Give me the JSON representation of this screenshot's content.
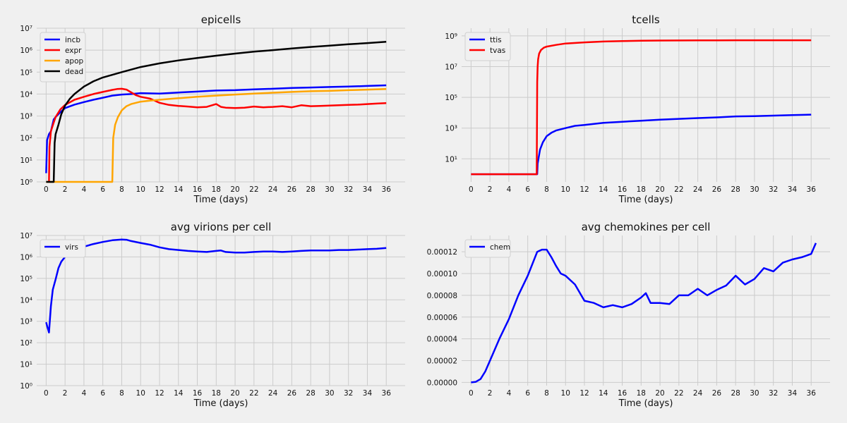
{
  "chart_data": [
    {
      "type": "line",
      "title": "epicells",
      "xlabel": "Time (days)",
      "ylabel": "",
      "yscale": "log",
      "ylim_log10": [
        0,
        7
      ],
      "ytick_labels": [
        "10⁰",
        "10¹",
        "10²",
        "10³",
        "10⁴",
        "10⁵",
        "10⁶",
        "10⁷"
      ],
      "xlim": [
        -1,
        38
      ],
      "xticks": [
        0,
        2,
        4,
        6,
        8,
        10,
        12,
        14,
        16,
        18,
        20,
        22,
        24,
        26,
        28,
        30,
        32,
        34,
        36
      ],
      "grid": true,
      "legend": "top-left",
      "series": [
        {
          "name": "incb",
          "color": "#0000ff",
          "x": [
            0,
            0.1,
            0.3,
            0.5,
            0.8,
            1,
            1.5,
            2,
            3,
            4,
            5,
            6,
            7,
            8,
            9,
            10,
            12,
            14,
            16,
            18,
            20,
            22,
            24,
            26,
            28,
            30,
            32,
            34,
            36
          ],
          "values": [
            2.5,
            80,
            150,
            200,
            700,
            900,
            1500,
            2300,
            3300,
            4300,
            5500,
            6800,
            8500,
            9500,
            10000,
            11000,
            10500,
            11800,
            13000,
            14500,
            15000,
            16500,
            17500,
            19000,
            20000,
            21000,
            22000,
            23500,
            25000
          ]
        },
        {
          "name": "expr",
          "color": "#ff0000",
          "x": [
            0.3,
            0.35,
            0.5,
            0.8,
            1,
            1.5,
            2,
            3,
            4,
            5,
            6,
            7,
            7.5,
            8,
            8.5,
            9,
            9.5,
            10,
            11,
            12,
            13,
            14,
            15,
            16,
            17,
            18,
            18.5,
            19,
            20,
            21,
            22,
            23,
            24,
            25,
            26,
            27,
            28,
            29,
            30,
            31,
            32,
            33,
            34,
            35,
            36
          ],
          "values": [
            1,
            40,
            200,
            500,
            900,
            2000,
            3200,
            5500,
            7500,
            10000,
            12500,
            15500,
            17000,
            17500,
            16000,
            12000,
            9000,
            7500,
            6200,
            4000,
            3200,
            2900,
            2700,
            2500,
            2600,
            3500,
            2600,
            2400,
            2300,
            2400,
            2700,
            2500,
            2600,
            2800,
            2500,
            3100,
            2800,
            2900,
            3000,
            3100,
            3200,
            3300,
            3500,
            3700,
            3900
          ]
        },
        {
          "name": "apop",
          "color": "#ffa500",
          "x": [
            0,
            7,
            7.1,
            7.3,
            7.6,
            8,
            8.5,
            9,
            10,
            11,
            12,
            14,
            16,
            18,
            20,
            22,
            24,
            26,
            28,
            30,
            32,
            34,
            36
          ],
          "values": [
            1,
            1,
            100,
            400,
            900,
            1800,
            2800,
            3500,
            4500,
            5000,
            5500,
            6500,
            7500,
            8500,
            9500,
            10500,
            11500,
            12500,
            13500,
            14000,
            15000,
            16000,
            17000
          ]
        },
        {
          "name": "dead",
          "color": "#000000",
          "x": [
            0,
            0.8,
            0.9,
            1,
            1.3,
            1.6,
            2,
            2.5,
            3,
            4,
            5,
            6,
            8,
            10,
            12,
            14,
            16,
            18,
            20,
            22,
            24,
            26,
            28,
            30,
            32,
            34,
            36
          ],
          "values": [
            1,
            1,
            60,
            150,
            400,
            1200,
            3000,
            6000,
            10000,
            22000,
            38000,
            57000,
            100000,
            170000,
            250000,
            340000,
            440000,
            560000,
            700000,
            850000,
            1000000,
            1200000,
            1400000,
            1600000,
            1850000,
            2100000,
            2400000
          ]
        }
      ]
    },
    {
      "type": "line",
      "title": "tcells",
      "xlabel": "Time (days)",
      "ylabel": "",
      "yscale": "log",
      "ylim_log10": [
        -0.5,
        9.5
      ],
      "ytick_labels": [
        "10¹",
        "10³",
        "10⁵",
        "10⁷",
        "10⁹"
      ],
      "xlim": [
        -1,
        38
      ],
      "xticks": [
        0,
        2,
        4,
        6,
        8,
        10,
        12,
        14,
        16,
        18,
        20,
        22,
        24,
        26,
        28,
        30,
        32,
        34,
        36
      ],
      "grid": true,
      "legend": "top-left",
      "series": [
        {
          "name": "ttis",
          "color": "#0000ff",
          "x": [
            0,
            7,
            7.05,
            7.3,
            7.6,
            8,
            8.5,
            9,
            10,
            11,
            12,
            14,
            16,
            18,
            20,
            22,
            24,
            26,
            28,
            30,
            32,
            34,
            36
          ],
          "values": [
            1,
            1,
            5,
            40,
            120,
            300,
            500,
            700,
            1000,
            1400,
            1600,
            2200,
            2600,
            3000,
            3500,
            4000,
            4500,
            5000,
            5800,
            6000,
            6500,
            7000,
            7500
          ]
        },
        {
          "name": "tvas",
          "color": "#ff0000",
          "x": [
            0,
            6.95,
            7.0,
            7.05,
            7.1,
            7.2,
            7.4,
            7.7,
            8,
            9,
            10,
            12,
            14,
            16,
            18,
            20,
            24,
            28,
            32,
            36
          ],
          "values": [
            1,
            1,
            1000000,
            10000000,
            30000000,
            70000000,
            120000000,
            170000000,
            200000000,
            260000000,
            320000000,
            380000000,
            430000000,
            460000000,
            480000000,
            500000000,
            510000000,
            520000000,
            520000000,
            520000000
          ]
        }
      ]
    },
    {
      "type": "line",
      "title": "avg virions per cell",
      "xlabel": "Time (days)",
      "ylabel": "",
      "yscale": "log",
      "ylim_log10": [
        0,
        7
      ],
      "ytick_labels": [
        "10⁰",
        "10¹",
        "10²",
        "10³",
        "10⁴",
        "10⁵",
        "10⁶",
        "10⁷"
      ],
      "xlim": [
        -1,
        38
      ],
      "xticks": [
        0,
        2,
        4,
        6,
        8,
        10,
        12,
        14,
        16,
        18,
        20,
        22,
        24,
        26,
        28,
        30,
        32,
        34,
        36
      ],
      "grid": true,
      "legend": "top-left",
      "series": [
        {
          "name": "virs",
          "color": "#0000ff",
          "x": [
            0,
            0.15,
            0.3,
            0.5,
            0.7,
            1,
            1.3,
            1.6,
            2,
            2.5,
            3,
            4,
            5,
            6,
            7,
            8,
            8.5,
            9,
            10,
            11,
            12,
            13,
            14,
            15,
            16,
            17,
            18,
            18.5,
            19,
            20,
            21,
            22,
            23,
            24,
            25,
            26,
            27,
            28,
            29,
            30,
            31,
            32,
            33,
            34,
            35,
            36
          ],
          "values": [
            900,
            500,
            300,
            5000,
            30000,
            90000,
            300000,
            600000,
            1000000,
            1500000,
            2000000,
            3000000,
            4000000,
            5000000,
            6000000,
            6500000,
            6300000,
            5500000,
            4500000,
            3700000,
            2800000,
            2300000,
            2100000,
            1900000,
            1800000,
            1700000,
            1900000,
            2000000,
            1700000,
            1600000,
            1600000,
            1700000,
            1800000,
            1800000,
            1700000,
            1800000,
            1900000,
            2000000,
            2000000,
            2000000,
            2100000,
            2100000,
            2200000,
            2300000,
            2400000,
            2600000
          ]
        }
      ]
    },
    {
      "type": "line",
      "title": "avg chemokines per cell",
      "xlabel": "Time (days)",
      "ylabel": "",
      "yscale": "linear",
      "ylim": [
        -3e-06,
        0.000135
      ],
      "yticks": [
        0,
        2e-05,
        4e-05,
        6e-05,
        8e-05,
        0.0001,
        0.00012
      ],
      "ytick_labels": [
        "0.00000",
        "0.00002",
        "0.00004",
        "0.00006",
        "0.00008",
        "0.00010",
        "0.00012"
      ],
      "xlim": [
        -1,
        38
      ],
      "xticks": [
        0,
        2,
        4,
        6,
        8,
        10,
        12,
        14,
        16,
        18,
        20,
        22,
        24,
        26,
        28,
        30,
        32,
        34,
        36
      ],
      "grid": true,
      "legend": "top-left",
      "series": [
        {
          "name": "chem",
          "color": "#0000ff",
          "x": [
            0,
            0.5,
            1,
            1.5,
            2,
            3,
            4,
            5,
            6,
            7,
            7.5,
            8,
            8.5,
            9,
            9.5,
            10,
            11,
            12,
            13,
            14,
            15,
            16,
            17,
            18,
            18.5,
            19,
            20,
            21,
            22,
            23,
            24,
            25,
            26,
            27,
            28,
            29,
            30,
            31,
            32,
            33,
            34,
            35,
            36,
            36.5
          ],
          "values": [
            0,
            5e-07,
            3e-06,
            1e-05,
            2e-05,
            4e-05,
            5.8e-05,
            8e-05,
            9.8e-05,
            0.00012,
            0.000122,
            0.000122,
            0.000115,
            0.000107,
            0.0001,
            9.8e-05,
            9e-05,
            7.5e-05,
            7.3e-05,
            6.9e-05,
            7.1e-05,
            6.9e-05,
            7.2e-05,
            7.8e-05,
            8.2e-05,
            7.3e-05,
            7.3e-05,
            7.2e-05,
            8e-05,
            8e-05,
            8.6e-05,
            8e-05,
            8.5e-05,
            8.9e-05,
            9.8e-05,
            9e-05,
            9.5e-05,
            0.000105,
            0.000102,
            0.00011,
            0.000113,
            0.000115,
            0.000118,
            0.000128
          ]
        }
      ]
    }
  ]
}
